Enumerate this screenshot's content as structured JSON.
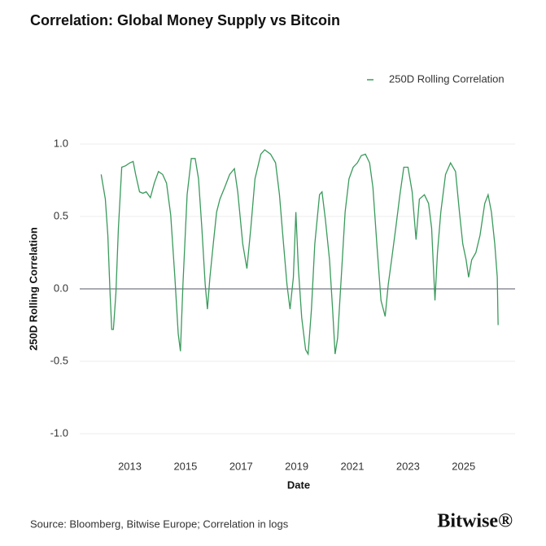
{
  "chart_data": {
    "type": "line",
    "title": "Correlation: Global Money Supply vs Bitcoin",
    "xlabel": "Date",
    "ylabel": "250D Rolling Correlation",
    "x": [
      2011.97,
      2012.12,
      2012.21,
      2012.29,
      2012.35,
      2012.41,
      2012.5,
      2012.59,
      2012.71,
      2012.85,
      2013.0,
      2013.12,
      2013.21,
      2013.35,
      2013.47,
      2013.59,
      2013.74,
      2013.88,
      2014.03,
      2014.18,
      2014.32,
      2014.47,
      2014.62,
      2014.74,
      2014.82,
      2014.91,
      2015.06,
      2015.21,
      2015.35,
      2015.47,
      2015.59,
      2015.71,
      2015.79,
      2015.88,
      2016.0,
      2016.12,
      2016.24,
      2016.41,
      2016.59,
      2016.76,
      2016.88,
      2017.06,
      2017.21,
      2017.35,
      2017.5,
      2017.71,
      2017.85,
      2018.06,
      2018.24,
      2018.38,
      2018.5,
      2018.65,
      2018.76,
      2018.88,
      2018.97,
      2019.06,
      2019.18,
      2019.32,
      2019.41,
      2019.53,
      2019.65,
      2019.82,
      2019.91,
      2020.03,
      2020.18,
      2020.29,
      2020.38,
      2020.47,
      2020.62,
      2020.74,
      2020.88,
      2021.03,
      2021.18,
      2021.32,
      2021.47,
      2021.62,
      2021.74,
      2021.88,
      2022.03,
      2022.18,
      2022.29,
      2022.41,
      2022.56,
      2022.71,
      2022.85,
      2023.0,
      2023.15,
      2023.29,
      2023.41,
      2023.59,
      2023.74,
      2023.85,
      2023.97,
      2024.06,
      2024.18,
      2024.35,
      2024.53,
      2024.71,
      2024.85,
      2024.97,
      2025.09,
      2025.18,
      2025.29,
      2025.44,
      2025.59,
      2025.76,
      2025.88,
      2026.0,
      2026.12,
      2026.21,
      2026.24
    ],
    "series": [
      {
        "name": "250D Rolling Correlation",
        "color": "#3a9a5c",
        "values": [
          0.79,
          0.62,
          0.37,
          -0.03,
          -0.28,
          -0.28,
          -0.03,
          0.42,
          0.84,
          0.85,
          0.87,
          0.88,
          0.79,
          0.67,
          0.66,
          0.67,
          0.63,
          0.73,
          0.81,
          0.79,
          0.73,
          0.51,
          0.08,
          -0.31,
          -0.43,
          0.03,
          0.65,
          0.9,
          0.9,
          0.76,
          0.42,
          0.03,
          -0.14,
          0.08,
          0.31,
          0.53,
          0.62,
          0.7,
          0.79,
          0.83,
          0.67,
          0.31,
          0.14,
          0.42,
          0.76,
          0.93,
          0.96,
          0.93,
          0.87,
          0.65,
          0.37,
          0.03,
          -0.14,
          0.08,
          0.53,
          0.14,
          -0.2,
          -0.42,
          -0.45,
          -0.14,
          0.31,
          0.65,
          0.67,
          0.48,
          0.2,
          -0.14,
          -0.45,
          -0.34,
          0.14,
          0.53,
          0.76,
          0.84,
          0.87,
          0.92,
          0.93,
          0.87,
          0.7,
          0.31,
          -0.08,
          -0.19,
          0.03,
          0.2,
          0.42,
          0.65,
          0.84,
          0.84,
          0.67,
          0.34,
          0.62,
          0.65,
          0.59,
          0.42,
          -0.08,
          0.25,
          0.53,
          0.79,
          0.87,
          0.81,
          0.53,
          0.31,
          0.2,
          0.08,
          0.2,
          0.25,
          0.37,
          0.59,
          0.65,
          0.53,
          0.31,
          0.08,
          -0.25
        ]
      }
    ],
    "xlim": [
      2011.2,
      2026.85
    ],
    "xticks": [
      2013,
      2015,
      2017,
      2019,
      2021,
      2023,
      2025
    ],
    "ylim": [
      -1.0,
      1.0
    ],
    "yticks": [
      {
        "value": -1,
        "label": "-1.0"
      },
      -0.5,
      {
        "value": 0,
        "label": "0.0"
      },
      0.5,
      {
        "value": 1,
        "label": "1.0"
      }
    ],
    "grid": true,
    "legend": "top-right"
  },
  "source": "Source: Bloomberg, Bitwise Europe; Correlation in logs",
  "brand": "Bitwise®"
}
